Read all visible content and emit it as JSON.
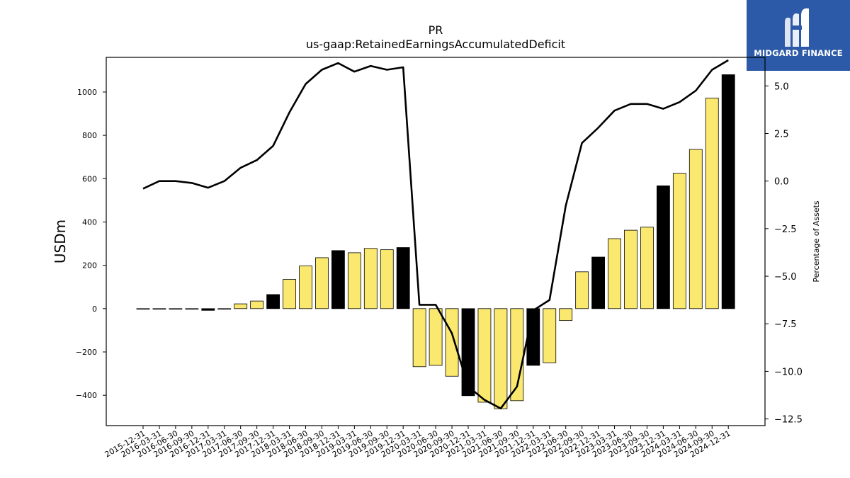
{
  "title_line1": "PR",
  "title_line2": "us-gaap:RetainedEarningsAccumulatedDeficit",
  "brand": {
    "name": "MIDGARD FINANCE",
    "color": "#2d5aa8"
  },
  "chart_data": {
    "type": "bar",
    "ylabel": "USDm",
    "y2label": "Percentage of Assets",
    "ylim": [
      -540,
      1160
    ],
    "y2lim": [
      -12.85,
      6.5
    ],
    "yticks": [
      -400,
      -200,
      0,
      200,
      400,
      600,
      800,
      1000
    ],
    "ytick_labels": [
      "−400",
      "−200",
      "0",
      "200",
      "400",
      "600",
      "800",
      "1000"
    ],
    "y2ticks": [
      -12.5,
      -10.0,
      -7.5,
      -5.0,
      -2.5,
      0.0,
      2.5,
      5.0
    ],
    "y2tick_labels": [
      "−12.5",
      "−10.0",
      "−7.5",
      "−5.0",
      "−2.5",
      "0.0",
      "2.5",
      "5.0"
    ],
    "grid": false,
    "colors": {
      "quarterly": "#fbe96f",
      "annual": "#000000",
      "line": "#000000"
    },
    "categories": [
      "2015-12-31",
      "2016-03-31",
      "2016-06-30",
      "2016-09-30",
      "2016-12-31",
      "2017-03-31",
      "2017-06-30",
      "2017-09-30",
      "2017-12-31",
      "2018-03-31",
      "2018-06-30",
      "2018-09-30",
      "2018-12-31",
      "2019-03-31",
      "2019-06-30",
      "2019-09-30",
      "2019-12-31",
      "2020-03-31",
      "2020-06-30",
      "2020-09-30",
      "2020-12-31",
      "2021-03-31",
      "2021-06-30",
      "2021-09-30",
      "2021-12-31",
      "2022-03-31",
      "2022-06-30",
      "2022-09-30",
      "2022-12-31",
      "2023-03-31",
      "2023-06-30",
      "2023-09-30",
      "2023-12-31",
      "2024-03-31",
      "2024-06-30",
      "2024-09-30",
      "2024-12-31"
    ],
    "series": [
      {
        "values": [
          0,
          0,
          0,
          0,
          -8,
          0,
          22,
          35,
          65,
          135,
          197,
          235,
          268,
          258,
          278,
          272,
          282,
          -268,
          -262,
          -312,
          -402,
          -432,
          -462,
          -425,
          -262,
          -250,
          -55,
          170,
          238,
          323,
          362,
          376,
          567,
          625,
          735,
          972,
          1080
        ],
        "annual": [
          false,
          false,
          false,
          false,
          true,
          false,
          false,
          false,
          true,
          false,
          false,
          false,
          true,
          false,
          false,
          false,
          true,
          false,
          false,
          false,
          true,
          false,
          false,
          false,
          true,
          false,
          false,
          false,
          true,
          false,
          false,
          false,
          true,
          false,
          false,
          false,
          true
        ]
      },
      {
        "axis": "right",
        "values": [
          -0.4,
          0.0,
          0.0,
          -0.1,
          -0.35,
          0.0,
          0.7,
          1.1,
          1.85,
          3.6,
          5.1,
          5.85,
          6.2,
          5.75,
          6.05,
          5.85,
          5.98,
          -6.5,
          -6.5,
          -8.0,
          -10.8,
          -11.5,
          -11.95,
          -10.8,
          -6.8,
          -6.25,
          -1.3,
          2.0,
          2.8,
          3.7,
          4.05,
          4.05,
          3.8,
          4.15,
          4.75,
          5.85,
          6.35
        ]
      }
    ]
  }
}
